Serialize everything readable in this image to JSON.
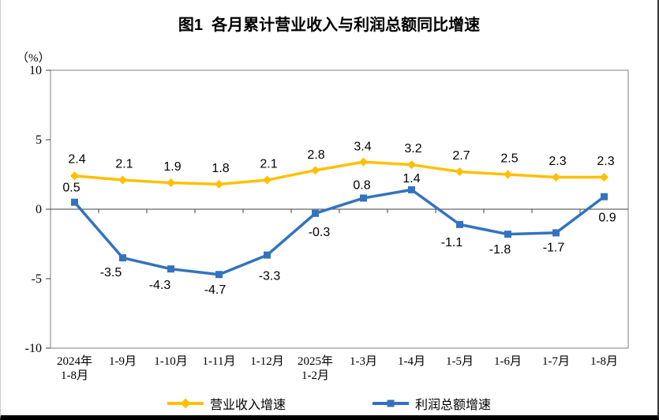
{
  "chart_data": {
    "type": "line",
    "title": "图1  各月累计营业收入与利润总额同比增速",
    "ylabel": "（%）",
    "ylim": [
      -10,
      10
    ],
    "y_ticks": [
      10,
      5,
      0,
      -5,
      -10
    ],
    "grid": false,
    "legend_position": "bottom",
    "categories": [
      [
        "2024年",
        "1-8月"
      ],
      [
        "1-9月"
      ],
      [
        "1-10月"
      ],
      [
        "1-11月"
      ],
      [
        "1-12月"
      ],
      [
        "2025年",
        "1-2月"
      ],
      [
        "1-3月"
      ],
      [
        "1-4月"
      ],
      [
        "1-5月"
      ],
      [
        "1-6月"
      ],
      [
        "1-7月"
      ],
      [
        "1-8月"
      ]
    ],
    "series": [
      {
        "name": "营业收入增速",
        "color": "#FFC000",
        "marker": "diamond",
        "values": [
          2.4,
          2.1,
          1.9,
          1.8,
          2.1,
          2.8,
          3.4,
          3.2,
          2.7,
          2.5,
          2.3,
          2.3
        ],
        "label_offsets": [
          [
            3,
            -22
          ],
          [
            2,
            -21
          ],
          [
            2,
            -21
          ],
          [
            2,
            -21
          ],
          [
            2,
            -21
          ],
          [
            1,
            -20
          ],
          [
            -1,
            -20
          ],
          [
            2,
            -21
          ],
          [
            2,
            -21
          ],
          [
            2,
            -21
          ],
          [
            2,
            -21
          ],
          [
            2,
            -21
          ]
        ]
      },
      {
        "name": "利润总额增速",
        "color": "#3273BE",
        "marker": "square",
        "values": [
          0.5,
          -3.5,
          -4.3,
          -4.7,
          -3.3,
          -0.3,
          0.8,
          1.4,
          -1.1,
          -1.8,
          -1.7,
          0.9
        ],
        "label_offsets": [
          [
            -4,
            -19
          ],
          [
            -15,
            18
          ],
          [
            -14,
            20
          ],
          [
            -5,
            19
          ],
          [
            3,
            26
          ],
          [
            5,
            23
          ],
          [
            -2,
            -17
          ],
          [
            0,
            -15
          ],
          [
            -10,
            22
          ],
          [
            -10,
            19
          ],
          [
            -3,
            18
          ],
          [
            4,
            26
          ]
        ]
      }
    ]
  }
}
